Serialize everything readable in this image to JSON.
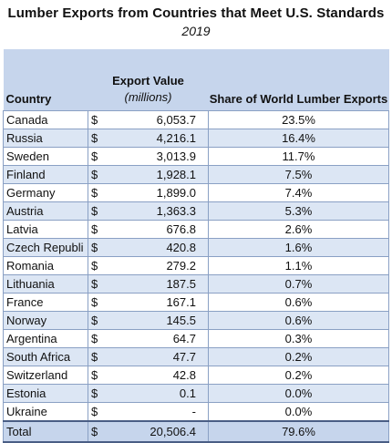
{
  "title": "Lumber Exports from Countries that Meet U.S. Standards",
  "subtitle": "2019",
  "headers": {
    "country": "Country",
    "export_value": "Export Value",
    "export_unit": "(millions)",
    "share": "Share of World Lumber Exports"
  },
  "rows": [
    {
      "country": "Canada",
      "dollar": "$",
      "value": "6,053.7",
      "share": "23.5%"
    },
    {
      "country": "Russia",
      "dollar": "$",
      "value": "4,216.1",
      "share": "16.4%"
    },
    {
      "country": "Sweden",
      "dollar": "$",
      "value": "3,013.9",
      "share": "11.7%"
    },
    {
      "country": "Finland",
      "dollar": "$",
      "value": "1,928.1",
      "share": "7.5%"
    },
    {
      "country": "Germany",
      "dollar": "$",
      "value": "1,899.0",
      "share": "7.4%"
    },
    {
      "country": "Austria",
      "dollar": "$",
      "value": "1,363.3",
      "share": "5.3%"
    },
    {
      "country": "Latvia",
      "dollar": "$",
      "value": "676.8",
      "share": "2.6%"
    },
    {
      "country": "Czech Republi",
      "dollar": "$",
      "value": "420.8",
      "share": "1.6%"
    },
    {
      "country": "Romania",
      "dollar": "$",
      "value": "279.2",
      "share": "1.1%"
    },
    {
      "country": "Lithuania",
      "dollar": "$",
      "value": "187.5",
      "share": "0.7%"
    },
    {
      "country": "France",
      "dollar": "$",
      "value": "167.1",
      "share": "0.6%"
    },
    {
      "country": "Norway",
      "dollar": "$",
      "value": "145.5",
      "share": "0.6%"
    },
    {
      "country": "Argentina",
      "dollar": "$",
      "value": "64.7",
      "share": "0.3%"
    },
    {
      "country": "South Africa",
      "dollar": "$",
      "value": "47.7",
      "share": "0.2%"
    },
    {
      "country": "Switzerland",
      "dollar": "$",
      "value": "42.8",
      "share": "0.2%"
    },
    {
      "country": "Estonia",
      "dollar": "$",
      "value": "0.1",
      "share": "0.0%"
    },
    {
      "country": "Ukraine",
      "dollar": "$",
      "value": "-",
      "share": "0.0%"
    }
  ],
  "total": {
    "country": "Total",
    "dollar": "$",
    "value": "20,506.4",
    "share": "79.6%"
  },
  "colors": {
    "header_fill": "#c6d5ec",
    "band_fill": "#dce6f4",
    "grid_line": "#8aa0c4",
    "total_rule": "#4a5e85"
  }
}
